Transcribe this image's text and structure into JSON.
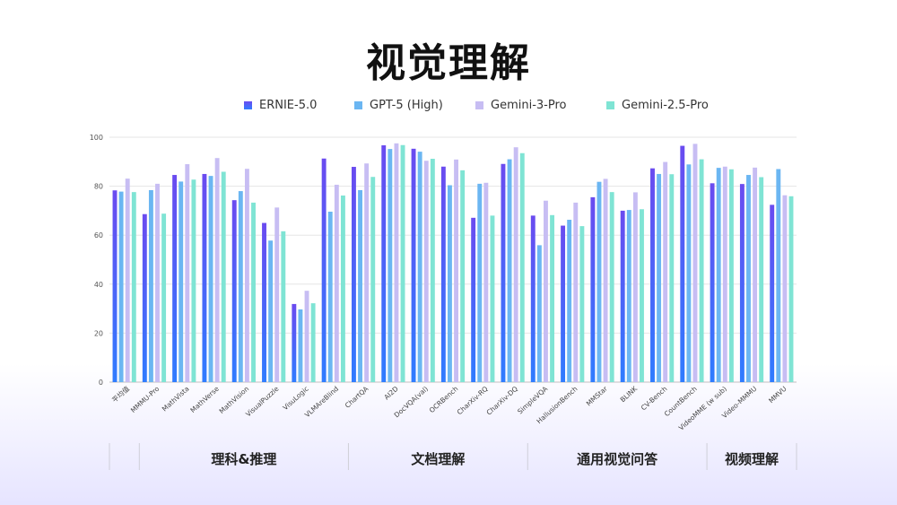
{
  "title": "视觉理解",
  "colors": {
    "ERNIE-5.0": [
      "#6a4bf0",
      "#2f7cff"
    ],
    "GPT-5 (High)": [
      "#6bb6f2",
      "#6bb6f2"
    ],
    "Gemini-3-Pro": [
      "#c7bdf3",
      "#c7bdf3"
    ],
    "Gemini-2.5-Pro": [
      "#7fe4d4",
      "#7fe4d4"
    ]
  },
  "chart_data": {
    "type": "bar",
    "title": "视觉理解",
    "xlabel": "",
    "ylabel": "",
    "ylim": [
      0,
      100
    ],
    "yticks": [
      0,
      20,
      40,
      60,
      80,
      100
    ],
    "grid": true,
    "legend_position": "top",
    "categories": [
      "平均值",
      "MMMU-Pro",
      "MathVista",
      "MathVerse",
      "MathVision",
      "VisualPuzzle",
      "VisuLogic",
      "VLMAreBlind",
      "ChartQA",
      "AI2D",
      "DocVQA(val)",
      "OCRBench",
      "CharXiv-RQ",
      "CharXiv-DQ",
      "SimpleVQA",
      "HallusionBench",
      "MMStar",
      "BLINK",
      "CV-Bench",
      "CountBench",
      "VideoMME (w sub)",
      "Video-MMMU",
      "MMVU"
    ],
    "series": [
      {
        "name": "ERNIE-5.0",
        "values": [
          78.3,
          68.6,
          84.6,
          85.0,
          74.3,
          65.0,
          31.9,
          91.3,
          87.9,
          96.7,
          95.3,
          88.0,
          67.1,
          89.1,
          68.0,
          63.9,
          75.5,
          70.0,
          87.3,
          96.5,
          81.2,
          80.9,
          72.4
        ]
      },
      {
        "name": "GPT-5 (High)",
        "values": [
          77.8,
          78.4,
          81.9,
          84.2,
          78.0,
          57.8,
          29.7,
          69.6,
          78.4,
          95.2,
          94.1,
          80.4,
          81.0,
          91.0,
          55.9,
          66.3,
          81.8,
          70.3,
          85.0,
          88.9,
          87.5,
          84.6,
          87.0
        ]
      },
      {
        "name": "Gemini-3-Pro",
        "values": [
          83.1,
          81.0,
          89.0,
          91.5,
          87.1,
          71.3,
          37.3,
          80.6,
          89.3,
          97.5,
          90.4,
          90.9,
          81.4,
          95.9,
          74.1,
          73.3,
          83.0,
          77.5,
          89.9,
          97.3,
          88.0,
          87.6,
          76.3
        ]
      },
      {
        "name": "Gemini-2.5-Pro",
        "values": [
          77.6,
          68.8,
          82.7,
          85.9,
          73.3,
          61.6,
          32.2,
          76.2,
          83.8,
          96.8,
          91.2,
          86.5,
          68.0,
          93.5,
          68.2,
          63.7,
          77.6,
          70.6,
          84.9,
          91.0,
          86.9,
          83.7,
          75.9
        ]
      }
    ],
    "groups": [
      {
        "label": "",
        "from": 0,
        "to": 0
      },
      {
        "label": "理科&推理",
        "from": 1,
        "to": 7
      },
      {
        "label": "文档理解",
        "from": 8,
        "to": 13
      },
      {
        "label": "通用视觉问答",
        "from": 14,
        "to": 19
      },
      {
        "label": "视频理解",
        "from": 20,
        "to": 22
      }
    ]
  }
}
